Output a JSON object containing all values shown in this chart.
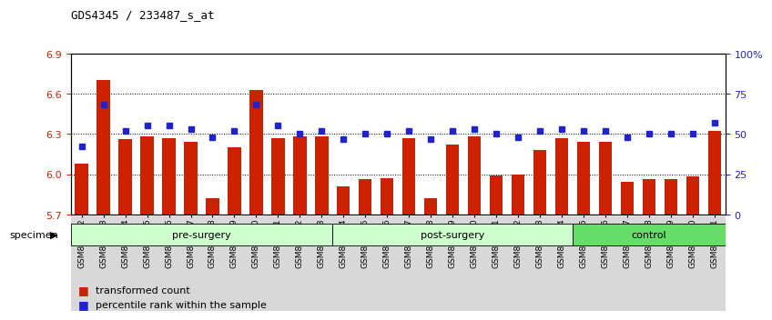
{
  "title": "GDS4345 / 233487_s_at",
  "samples": [
    "GSM842012",
    "GSM842013",
    "GSM842014",
    "GSM842015",
    "GSM842016",
    "GSM842017",
    "GSM842018",
    "GSM842019",
    "GSM842020",
    "GSM842021",
    "GSM842022",
    "GSM842023",
    "GSM842024",
    "GSM842025",
    "GSM842026",
    "GSM842027",
    "GSM842028",
    "GSM842029",
    "GSM842030",
    "GSM842031",
    "GSM842032",
    "GSM842033",
    "GSM842034",
    "GSM842035",
    "GSM842036",
    "GSM842037",
    "GSM842038",
    "GSM842039",
    "GSM842040",
    "GSM842041"
  ],
  "red_values": [
    6.08,
    6.7,
    6.26,
    6.28,
    6.27,
    6.24,
    5.82,
    6.2,
    6.63,
    6.27,
    6.28,
    6.28,
    5.91,
    5.96,
    5.97,
    6.27,
    5.82,
    6.22,
    6.28,
    5.99,
    6.0,
    6.18,
    6.27,
    6.24,
    6.24,
    5.94,
    5.96,
    5.96,
    5.98,
    6.32
  ],
  "blue_values": [
    42,
    68,
    52,
    55,
    55,
    53,
    48,
    52,
    68,
    55,
    50,
    52,
    47,
    50,
    50,
    52,
    47,
    52,
    53,
    50,
    48,
    52,
    53,
    52,
    52,
    48,
    50,
    50,
    50,
    57
  ],
  "groups": [
    {
      "label": "pre-surgery",
      "start": 0,
      "end": 12,
      "color": "#CCFFCC"
    },
    {
      "label": "post-surgery",
      "start": 12,
      "end": 23,
      "color": "#CCFFCC"
    },
    {
      "label": "control",
      "start": 23,
      "end": 30,
      "color": "#66DD66"
    }
  ],
  "ylim_left": [
    5.7,
    6.9
  ],
  "ylim_right": [
    0,
    100
  ],
  "yticks_left": [
    5.7,
    6.0,
    6.3,
    6.6,
    6.9
  ],
  "yticks_right": [
    0,
    25,
    50,
    75,
    100
  ],
  "ytick_labels_right": [
    "0",
    "25",
    "50",
    "75",
    "100%"
  ],
  "bar_color": "#CC2200",
  "dot_color": "#2222CC",
  "bar_bottom": 5.7,
  "legend_red": "transformed count",
  "legend_blue": "percentile rank within the sample",
  "specimen_label": "specimen",
  "bg_xtick": "#D8D8D8"
}
